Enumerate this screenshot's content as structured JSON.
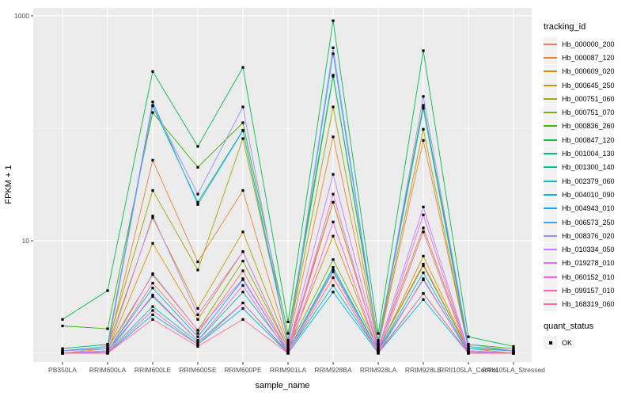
{
  "figure": {
    "background": "#FFFFFF"
  },
  "panel": {
    "background": "#EBEBEB",
    "grid_color": "#FFFFFF",
    "tick_color": "#333333",
    "tick_label_color": "#4D4D4D"
  },
  "axes": {
    "x_title": "sample_name",
    "y_title": "FPKM + 1"
  },
  "legend": {
    "tracking_title": "tracking_id",
    "quant_title": "quant_status",
    "quant_items": [
      {
        "label": "OK"
      }
    ],
    "key_background": "#F2F2F2"
  },
  "chart_data": {
    "type": "line",
    "title": "",
    "xlabel": "sample_name",
    "ylabel": "FPKM + 1",
    "y_scale": "log10",
    "ylim": [
      0.85,
      1175
    ],
    "y_major_ticks": [
      {
        "value": 1000,
        "label": "1000"
      },
      {
        "value": 10,
        "label": "10"
      }
    ],
    "y_minor_ticks": [
      100,
      1
    ],
    "grid": "on",
    "legend_position": "right",
    "point_shape": "square",
    "point_color": "#000000",
    "categories": [
      "PB350LA",
      "RRIM600LA",
      "RRIM600LE",
      "RRIM600SE",
      "RRIM600PE",
      "RRIM901LA",
      "RRIM928BA",
      "RRIM928LA",
      "RRIM928LE",
      "RRII105LA_Control",
      "RRII105LA_Stressed"
    ],
    "series": [
      {
        "name": "Hb_000000_200",
        "color": "#F8766D",
        "values": [
          1.0,
          1.02,
          4.2,
          1.5,
          5.4,
          1.05,
          22,
          1.1,
          6.2,
          1.05,
          1.0
        ]
      },
      {
        "name": "Hb_000087_120",
        "color": "#EA8331",
        "values": [
          1.0,
          1.1,
          52,
          6.5,
          28,
          1.2,
          84,
          1.15,
          78,
          1.1,
          1.0
        ]
      },
      {
        "name": "Hb_000609_020",
        "color": "#D89000",
        "values": [
          1.0,
          1.05,
          9.5,
          2.0,
          8.0,
          1.1,
          11,
          1.05,
          7.3,
          1.05,
          1.0
        ]
      },
      {
        "name": "Hb_000645_250",
        "color": "#C09B00",
        "values": [
          1.05,
          1.15,
          16,
          2.5,
          12,
          1.15,
          22,
          1.1,
          13,
          1.05,
          1.0
        ]
      },
      {
        "name": "Hb_000751_060",
        "color": "#A3A500",
        "values": [
          1.1,
          1.2,
          28,
          5.5,
          81,
          1.3,
          155,
          1.2,
          98,
          1.1,
          1.05
        ]
      },
      {
        "name": "Hb_000751_070",
        "color": "#7CAE00",
        "values": [
          1.05,
          1.1,
          5.0,
          1.6,
          6.6,
          1.1,
          6.8,
          1.1,
          6.0,
          1.05,
          1.0
        ]
      },
      {
        "name": "Hb_000836_260",
        "color": "#39B600",
        "values": [
          1.75,
          1.65,
          138,
          45,
          112,
          1.5,
          297,
          1.3,
          160,
          1.2,
          1.1
        ]
      },
      {
        "name": "Hb_000847_120",
        "color": "#00BB4E",
        "values": [
          2.0,
          3.6,
          320,
          69,
          348,
          1.9,
          905,
          1.5,
          490,
          1.4,
          1.15
        ]
      },
      {
        "name": "Hb_001004_130",
        "color": "#00BF7D",
        "values": [
          1.1,
          1.2,
          158,
          22,
          96,
          1.3,
          290,
          1.25,
          152,
          1.15,
          1.05
        ]
      },
      {
        "name": "Hb_001300_140",
        "color": "#00C1A3",
        "values": [
          1.0,
          1.05,
          3.2,
          1.3,
          3.5,
          1.05,
          5.5,
          1.05,
          4.5,
          1.02,
          1.0
        ]
      },
      {
        "name": "Hb_002379_060",
        "color": "#00BFC4",
        "values": [
          1.0,
          1.02,
          2.6,
          1.25,
          2.8,
          1.02,
          4.0,
          1.02,
          3.4,
          1.0,
          1.0
        ]
      },
      {
        "name": "Hb_004010_090",
        "color": "#00BAE0",
        "values": [
          1.0,
          1.0,
          2.2,
          1.2,
          2.5,
          1.0,
          3.5,
          1.0,
          3.0,
          1.0,
          1.0
        ]
      },
      {
        "name": "Hb_004943_010",
        "color": "#00B0F6",
        "values": [
          1.0,
          1.05,
          3.8,
          1.4,
          4.5,
          1.05,
          5.8,
          1.05,
          5.2,
          1.02,
          1.0
        ]
      },
      {
        "name": "Hb_006573_250",
        "color": "#35A2FF",
        "values": [
          1.05,
          1.15,
          172,
          21,
          95,
          1.25,
          460,
          1.2,
          150,
          1.1,
          1.05
        ]
      },
      {
        "name": "Hb_008376_020",
        "color": "#9590FF",
        "values": [
          1.05,
          1.1,
          160,
          26,
          155,
          1.2,
          520,
          1.2,
          192,
          1.2,
          1.05
        ]
      },
      {
        "name": "Hb_010334_050",
        "color": "#C77CFF",
        "values": [
          1.0,
          1.05,
          16.6,
          2.2,
          8.0,
          1.1,
          39,
          1.1,
          20,
          1.05,
          1.0
        ]
      },
      {
        "name": "Hb_019278_010",
        "color": "#E76BF3",
        "values": [
          1.0,
          1.02,
          5.1,
          1.6,
          4.6,
          1.05,
          26,
          1.05,
          17,
          1.02,
          1.0
        ]
      },
      {
        "name": "Hb_060152_010",
        "color": "#FA62DB",
        "values": [
          1.0,
          1.0,
          3.3,
          1.3,
          4.0,
          1.0,
          14.7,
          1.02,
          12,
          1.0,
          1.0
        ]
      },
      {
        "name": "Hb_099157_010",
        "color": "#FF62BC",
        "values": [
          1.0,
          1.0,
          2.4,
          1.2,
          2.8,
          1.0,
          5.3,
          1.0,
          4.6,
          1.0,
          1.0
        ]
      },
      {
        "name": "Hb_168319_060",
        "color": "#FF6A98",
        "values": [
          1.0,
          1.0,
          2.0,
          1.15,
          2.0,
          1.0,
          4.7,
          1.0,
          3.4,
          1.0,
          1.0
        ]
      }
    ]
  }
}
